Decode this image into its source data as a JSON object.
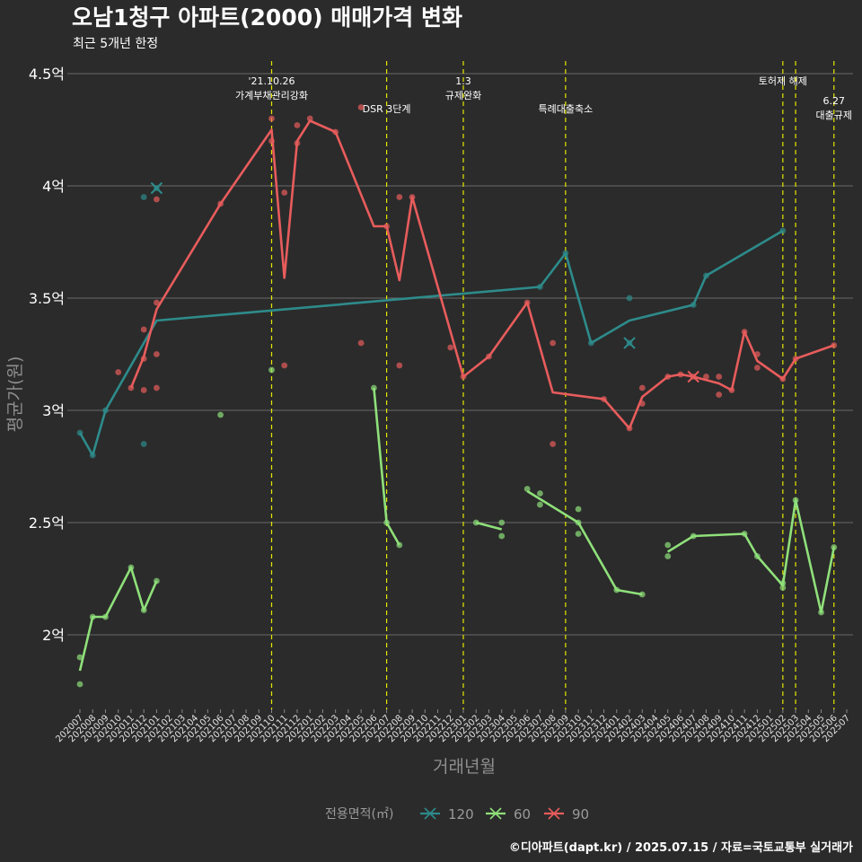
{
  "title": "오남1청구 아파트(2000) 매매가격 변화",
  "subtitle": "최근 5개년 한정",
  "caption": "©디아파트(dapt.kr) / 2025.07.15 / 자료=국토교통부 실거래가",
  "colors": {
    "background": "#2b2b2b",
    "grid": "#6a6a6a",
    "event_line": "#e6e600",
    "s120": "#2e8b8b",
    "s60": "#8fe07a",
    "s90": "#e85c5c"
  },
  "chart_data": {
    "type": "line",
    "xlabel": "거래년월",
    "ylabel": "평균가(원)",
    "categories": [
      "202007",
      "202008",
      "202009",
      "202010",
      "202011",
      "202012",
      "202101",
      "202102",
      "202103",
      "202104",
      "202105",
      "202106",
      "202107",
      "202108",
      "202109",
      "202110",
      "202111",
      "202112",
      "202201",
      "202202",
      "202203",
      "202204",
      "202205",
      "202206",
      "202207",
      "202208",
      "202209",
      "202210",
      "202211",
      "202212",
      "202301",
      "202302",
      "202303",
      "202304",
      "202305",
      "202306",
      "202307",
      "202308",
      "202309",
      "202310",
      "202311",
      "202312",
      "202401",
      "202402",
      "202403",
      "202404",
      "202405",
      "202406",
      "202407",
      "202408",
      "202409",
      "202410",
      "202411",
      "202412",
      "202501",
      "202502",
      "202503",
      "202504",
      "202505",
      "202506",
      "202507"
    ],
    "ylim": [
      1.65,
      4.55
    ],
    "yticks": [
      2,
      2.5,
      3,
      3.5,
      4,
      4.5
    ],
    "ytick_labels": [
      "2억",
      "2.5억",
      "3억",
      "3.5억",
      "4억",
      "4.5억"
    ],
    "grid": true,
    "legend": {
      "title": "전용면적(㎡)",
      "position": "bottom",
      "labels": [
        "120",
        "60",
        "90"
      ]
    },
    "series": [
      {
        "name": "120",
        "color_key": "s120",
        "line": [
          [
            "202007",
            2.9
          ],
          [
            "202008",
            2.8
          ],
          [
            "202009",
            3.0
          ],
          [
            "202101",
            3.4
          ],
          [
            "202307",
            3.55
          ],
          [
            "202309",
            3.7
          ],
          [
            "202311",
            3.3
          ],
          [
            "202402",
            3.4
          ],
          [
            "202407",
            3.47
          ],
          [
            "202408",
            3.6
          ],
          [
            "202502",
            3.8
          ]
        ],
        "points": [
          [
            "202007",
            2.9
          ],
          [
            "202008",
            2.8
          ],
          [
            "202009",
            3.0
          ],
          [
            "202012",
            3.95
          ],
          [
            "202012",
            2.85
          ],
          [
            "202101",
            3.99
          ],
          [
            "202307",
            3.55
          ],
          [
            "202309",
            3.7
          ],
          [
            "202311",
            3.3
          ],
          [
            "202402",
            3.5
          ],
          [
            "202402",
            3.3
          ],
          [
            "202407",
            3.47
          ],
          [
            "202408",
            3.6
          ],
          [
            "202502",
            3.8
          ]
        ],
        "marked": [
          [
            "202101",
            3.99
          ],
          [
            "202402",
            3.3
          ]
        ]
      },
      {
        "name": "60",
        "color_key": "s60",
        "line": [
          [
            "202007",
            1.84
          ],
          [
            "202008",
            2.08
          ],
          [
            "202009",
            2.08
          ],
          [
            "202011",
            2.3
          ],
          [
            "202012",
            2.11
          ],
          [
            "202101",
            2.24
          ]
        ],
        "line2": [
          [
            "202206",
            3.1
          ],
          [
            "202207",
            2.5
          ],
          [
            "202208",
            2.4
          ]
        ],
        "line3": [
          [
            "202302",
            2.5
          ],
          [
            "202304",
            2.47
          ]
        ],
        "line4": [
          [
            "202306",
            2.64
          ],
          [
            "202310",
            2.5
          ],
          [
            "202401",
            2.2
          ],
          [
            "202403",
            2.18
          ]
        ],
        "line5": [
          [
            "202405",
            2.37
          ],
          [
            "202407",
            2.44
          ],
          [
            "202411",
            2.45
          ],
          [
            "202412",
            2.35
          ],
          [
            "202502",
            2.22
          ],
          [
            "202503",
            2.6
          ],
          [
            "202505",
            2.1
          ],
          [
            "202506",
            2.39
          ]
        ],
        "points": [
          [
            "202007",
            1.9
          ],
          [
            "202007",
            1.78
          ],
          [
            "202008",
            2.08
          ],
          [
            "202009",
            2.08
          ],
          [
            "202011",
            2.3
          ],
          [
            "202012",
            2.11
          ],
          [
            "202101",
            2.24
          ],
          [
            "202106",
            2.98
          ],
          [
            "202110",
            3.18
          ],
          [
            "202206",
            3.1
          ],
          [
            "202207",
            2.5
          ],
          [
            "202208",
            2.4
          ],
          [
            "202302",
            2.5
          ],
          [
            "202304",
            2.5
          ],
          [
            "202304",
            2.44
          ],
          [
            "202306",
            2.65
          ],
          [
            "202307",
            2.63
          ],
          [
            "202307",
            2.58
          ],
          [
            "202310",
            2.56
          ],
          [
            "202310",
            2.45
          ],
          [
            "202310",
            2.5
          ],
          [
            "202401",
            2.2
          ],
          [
            "202403",
            2.18
          ],
          [
            "202405",
            2.4
          ],
          [
            "202405",
            2.35
          ],
          [
            "202407",
            2.44
          ],
          [
            "202411",
            2.45
          ],
          [
            "202412",
            2.35
          ],
          [
            "202502",
            2.23
          ],
          [
            "202502",
            2.21
          ],
          [
            "202503",
            2.6
          ],
          [
            "202505",
            2.1
          ],
          [
            "202506",
            2.39
          ]
        ],
        "marked": []
      },
      {
        "name": "90",
        "color_key": "s90",
        "line": [
          [
            "202011",
            3.1
          ],
          [
            "202012",
            3.24
          ],
          [
            "202101",
            3.45
          ],
          [
            "202106",
            3.92
          ],
          [
            "202110",
            4.25
          ],
          [
            "202111",
            3.59
          ],
          [
            "202112",
            4.2
          ],
          [
            "202201",
            4.29
          ],
          [
            "202203",
            4.24
          ],
          [
            "202206",
            3.82
          ],
          [
            "202207",
            3.82
          ],
          [
            "202208",
            3.58
          ],
          [
            "202209",
            3.95
          ],
          [
            "202301",
            3.15
          ],
          [
            "202303",
            3.24
          ],
          [
            "202306",
            3.48
          ],
          [
            "202308",
            3.08
          ],
          [
            "202312",
            3.05
          ],
          [
            "202402",
            2.92
          ],
          [
            "202403",
            3.06
          ],
          [
            "202405",
            3.15
          ],
          [
            "202406",
            3.16
          ],
          [
            "202407",
            3.15
          ],
          [
            "202409",
            3.12
          ],
          [
            "202410",
            3.09
          ],
          [
            "202411",
            3.35
          ],
          [
            "202412",
            3.22
          ],
          [
            "202502",
            3.14
          ],
          [
            "202503",
            3.23
          ],
          [
            "202506",
            3.29
          ]
        ],
        "points": [
          [
            "202010",
            3.17
          ],
          [
            "202011",
            3.1
          ],
          [
            "202012",
            3.09
          ],
          [
            "202012",
            3.36
          ],
          [
            "202012",
            3.23
          ],
          [
            "202101",
            3.48
          ],
          [
            "202101",
            3.25
          ],
          [
            "202101",
            3.1
          ],
          [
            "202101",
            3.94
          ],
          [
            "202106",
            3.92
          ],
          [
            "202110",
            4.3
          ],
          [
            "202110",
            4.2
          ],
          [
            "202111",
            3.97
          ],
          [
            "202111",
            3.2
          ],
          [
            "202112",
            4.27
          ],
          [
            "202112",
            4.19
          ],
          [
            "202201",
            4.3
          ],
          [
            "202203",
            4.24
          ],
          [
            "202205",
            3.3
          ],
          [
            "202205",
            4.35
          ],
          [
            "202207",
            3.82
          ],
          [
            "202208",
            3.95
          ],
          [
            "202208",
            3.2
          ],
          [
            "202209",
            3.95
          ],
          [
            "202212",
            3.28
          ],
          [
            "202301",
            3.15
          ],
          [
            "202303",
            3.24
          ],
          [
            "202306",
            3.48
          ],
          [
            "202308",
            3.3
          ],
          [
            "202308",
            2.85
          ],
          [
            "202312",
            3.05
          ],
          [
            "202402",
            2.92
          ],
          [
            "202403",
            3.1
          ],
          [
            "202403",
            3.03
          ],
          [
            "202405",
            3.15
          ],
          [
            "202406",
            3.16
          ],
          [
            "202407",
            3.15
          ],
          [
            "202408",
            3.15
          ],
          [
            "202409",
            3.15
          ],
          [
            "202409",
            3.07
          ],
          [
            "202410",
            3.09
          ],
          [
            "202411",
            3.35
          ],
          [
            "202412",
            3.25
          ],
          [
            "202412",
            3.19
          ],
          [
            "202502",
            3.14
          ],
          [
            "202503",
            3.23
          ],
          [
            "202506",
            3.29
          ]
        ],
        "marked": [
          [
            "202407",
            3.15
          ]
        ]
      }
    ],
    "events": [
      {
        "at": "202110",
        "labels": [
          "'21.10.26",
          "가계부채관리강화"
        ],
        "row": 0
      },
      {
        "at": "202207",
        "labels": [
          "DSR 3단계"
        ],
        "row": 1
      },
      {
        "at": "202301",
        "labels": [
          "1.3",
          "규제완화"
        ],
        "row": 0
      },
      {
        "at": "202309",
        "labels": [
          "특례대출축소"
        ],
        "row": 1
      },
      {
        "at": "202502",
        "labels": [
          "토허제 해제"
        ],
        "row": 0
      },
      {
        "at": "202503",
        "labels": [],
        "row": 0
      },
      {
        "at": "202506",
        "labels": [
          "6.27",
          "대출규제"
        ],
        "row": 2
      }
    ]
  }
}
